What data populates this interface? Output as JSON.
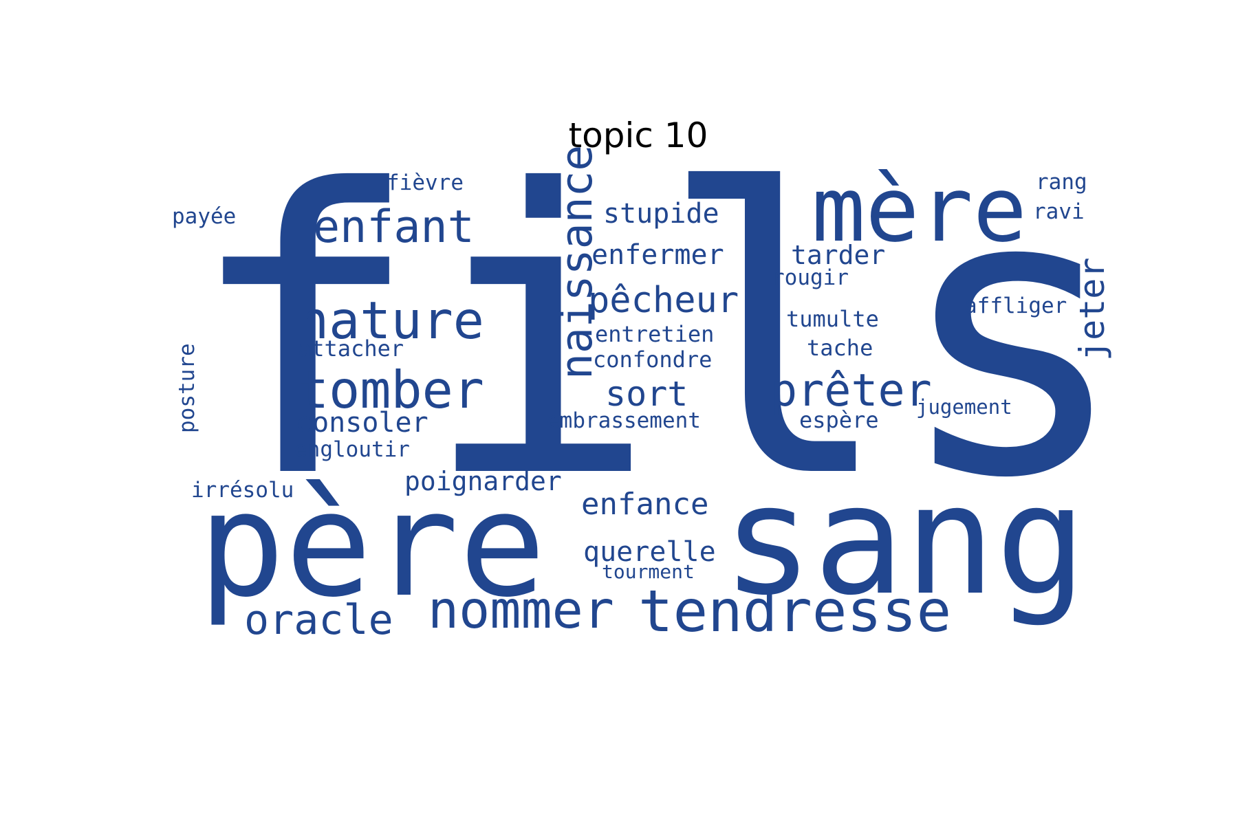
{
  "chart_data": {
    "type": "wordcloud",
    "title": "topic 10",
    "color": "#21468f",
    "words": [
      {
        "text": "fils",
        "weight": 1.0
      },
      {
        "text": "sang",
        "weight": 0.52
      },
      {
        "text": "père",
        "weight": 0.48
      },
      {
        "text": "mère",
        "weight": 0.3
      },
      {
        "text": "tendresse",
        "weight": 0.2
      },
      {
        "text": "nommer",
        "weight": 0.17
      },
      {
        "text": "naissance",
        "weight": 0.17
      },
      {
        "text": "nature",
        "weight": 0.17
      },
      {
        "text": "tomber",
        "weight": 0.17
      },
      {
        "text": "enfant",
        "weight": 0.15
      },
      {
        "text": "prêter",
        "weight": 0.15
      },
      {
        "text": "oracle",
        "weight": 0.14
      },
      {
        "text": "pêcheur",
        "weight": 0.12
      },
      {
        "text": "jeter",
        "weight": 0.11
      },
      {
        "text": "sort",
        "weight": 0.11
      },
      {
        "text": "enfance",
        "weight": 0.11
      },
      {
        "text": "querelle",
        "weight": 0.1
      },
      {
        "text": "stupide",
        "weight": 0.1
      },
      {
        "text": "enfermer",
        "weight": 0.1
      },
      {
        "text": "consoler",
        "weight": 0.1
      },
      {
        "text": "poignarder",
        "weight": 0.1
      },
      {
        "text": "tarder",
        "weight": 0.09
      },
      {
        "text": "entretien",
        "weight": 0.08
      },
      {
        "text": "tumulte",
        "weight": 0.08
      },
      {
        "text": "confondre",
        "weight": 0.08
      },
      {
        "text": "attacher",
        "weight": 0.08
      },
      {
        "text": "tache",
        "weight": 0.08
      },
      {
        "text": "embrassement",
        "weight": 0.08
      },
      {
        "text": "espère",
        "weight": 0.08
      },
      {
        "text": "engloutir",
        "weight": 0.08
      },
      {
        "text": "affliger",
        "weight": 0.08
      },
      {
        "text": "rougir",
        "weight": 0.08
      },
      {
        "text": "fièvre",
        "weight": 0.08
      },
      {
        "text": "rang",
        "weight": 0.08
      },
      {
        "text": "ravi",
        "weight": 0.08
      },
      {
        "text": "payée",
        "weight": 0.08
      },
      {
        "text": "posture",
        "weight": 0.08
      },
      {
        "text": "irrésolu",
        "weight": 0.08
      },
      {
        "text": "jugement",
        "weight": 0.07
      },
      {
        "text": "tourment",
        "weight": 0.07
      }
    ]
  }
}
